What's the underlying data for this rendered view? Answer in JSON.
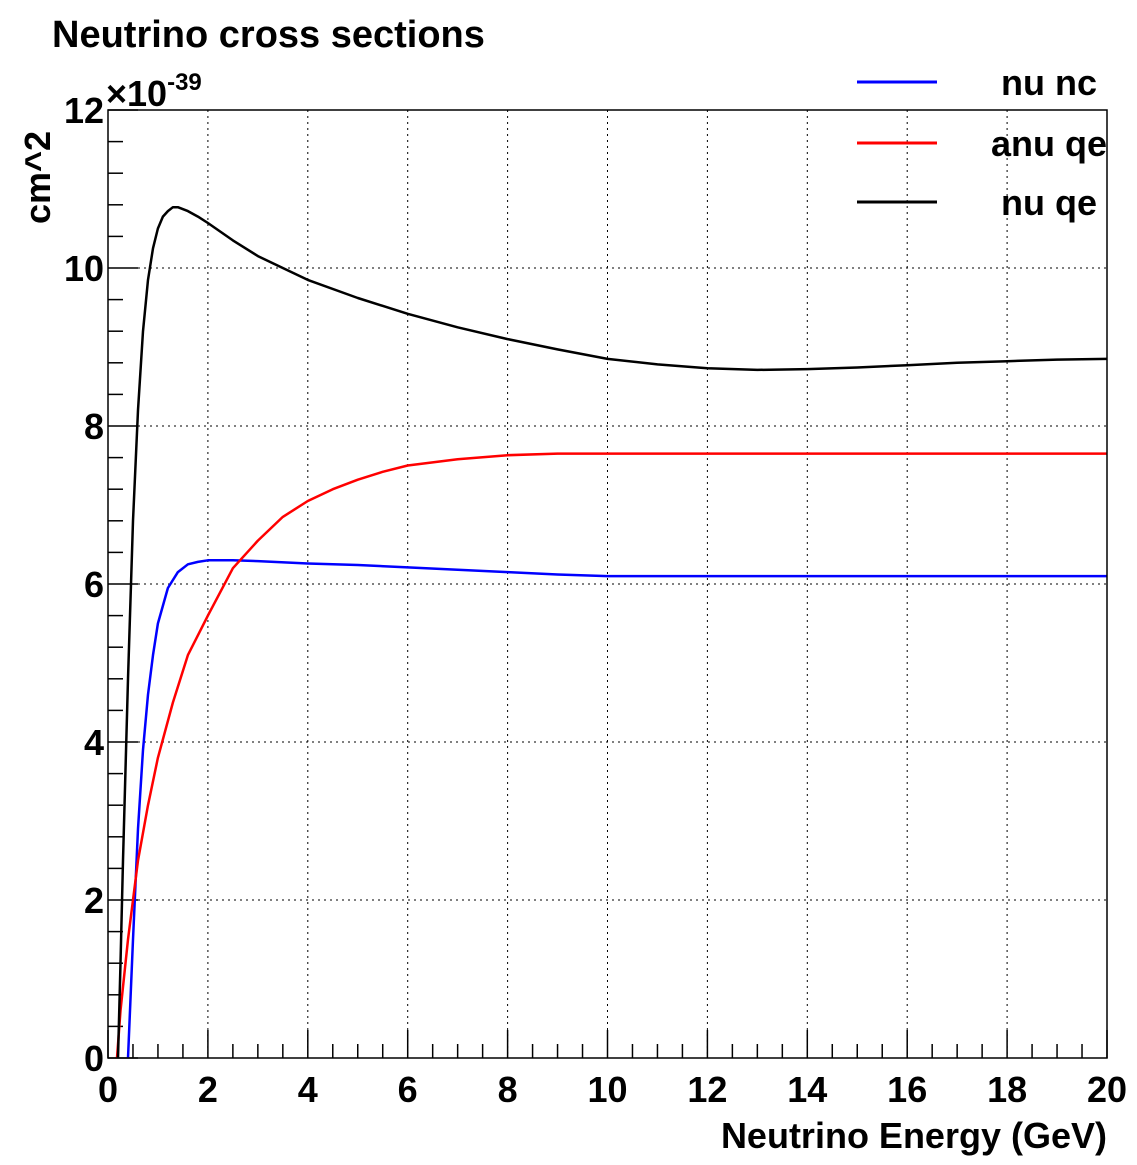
{
  "chart_data": {
    "type": "line",
    "title": "Neutrino cross sections",
    "xlabel": "Neutrino Energy (GeV)",
    "ylabel": "cm^2",
    "y_multiplier_base": "×10",
    "y_multiplier_exponent": "-39",
    "xlim": [
      0,
      20
    ],
    "ylim": [
      0,
      12
    ],
    "x_ticks": [
      "0",
      "2",
      "4",
      "6",
      "8",
      "10",
      "12",
      "14",
      "16",
      "18",
      "20"
    ],
    "y_ticks": [
      "0",
      "2",
      "4",
      "6",
      "8",
      "10",
      "12"
    ],
    "grid": true,
    "legend_position": "top-right",
    "series": [
      {
        "name": "nu nc",
        "color": "#0000ff",
        "x": [
          0.4,
          0.5,
          0.6,
          0.7,
          0.8,
          0.9,
          1.0,
          1.2,
          1.4,
          1.6,
          1.8,
          2.0,
          2.5,
          3.0,
          4.0,
          5.0,
          6.0,
          7.0,
          8.0,
          9.0,
          10.0,
          12.0,
          14.0,
          16.0,
          18.0,
          20.0
        ],
        "y": [
          0.0,
          1.5,
          2.9,
          3.9,
          4.6,
          5.1,
          5.5,
          5.95,
          6.15,
          6.25,
          6.28,
          6.3,
          6.3,
          6.29,
          6.26,
          6.24,
          6.21,
          6.18,
          6.15,
          6.12,
          6.1,
          6.1,
          6.1,
          6.1,
          6.1,
          6.1
        ]
      },
      {
        "name": "anu qe",
        "color": "#ff0000",
        "x": [
          0.18,
          0.25,
          0.3,
          0.4,
          0.5,
          0.6,
          0.8,
          1.0,
          1.3,
          1.6,
          2.0,
          2.5,
          3.0,
          3.5,
          4.0,
          4.5,
          5.0,
          5.5,
          6.0,
          7.0,
          8.0,
          9.0,
          10.0,
          12.0,
          14.0,
          16.0,
          18.0,
          20.0
        ],
        "y": [
          0.0,
          0.6,
          0.9,
          1.5,
          2.0,
          2.5,
          3.2,
          3.8,
          4.5,
          5.1,
          5.6,
          6.2,
          6.55,
          6.85,
          7.05,
          7.2,
          7.32,
          7.42,
          7.5,
          7.58,
          7.63,
          7.65,
          7.65,
          7.65,
          7.65,
          7.65,
          7.65,
          7.65
        ]
      },
      {
        "name": "nu qe",
        "color": "#000000",
        "x": [
          0.2,
          0.25,
          0.3,
          0.4,
          0.5,
          0.6,
          0.7,
          0.8,
          0.9,
          1.0,
          1.1,
          1.2,
          1.3,
          1.4,
          1.6,
          1.8,
          2.0,
          2.5,
          3.0,
          3.5,
          4.0,
          5.0,
          6.0,
          7.0,
          8.0,
          9.0,
          10.0,
          11.0,
          12.0,
          13.0,
          14.0,
          15.0,
          16.0,
          17.0,
          18.0,
          19.0,
          20.0
        ],
        "y": [
          0.0,
          1.2,
          2.5,
          4.8,
          6.8,
          8.2,
          9.2,
          9.85,
          10.25,
          10.5,
          10.65,
          10.72,
          10.77,
          10.77,
          10.72,
          10.65,
          10.57,
          10.35,
          10.15,
          10.0,
          9.85,
          9.62,
          9.42,
          9.25,
          9.1,
          8.97,
          8.85,
          8.78,
          8.73,
          8.71,
          8.72,
          8.74,
          8.77,
          8.8,
          8.82,
          8.84,
          8.85
        ]
      }
    ]
  }
}
